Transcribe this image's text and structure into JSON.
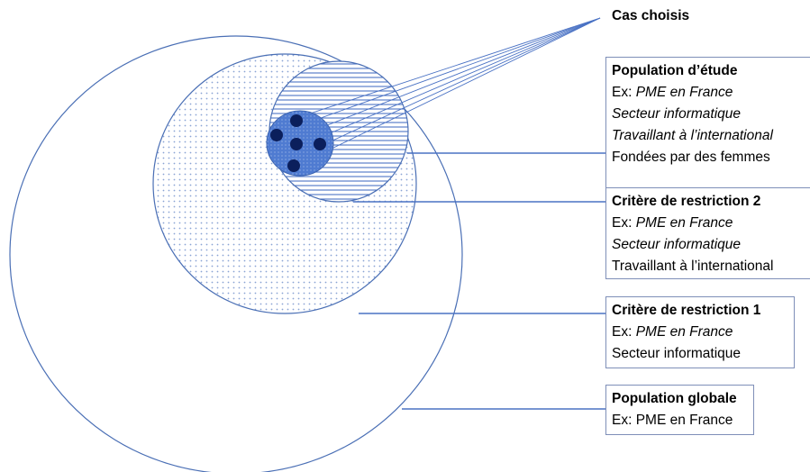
{
  "cas_choisis": "Cas choisis",
  "population_etude": {
    "title": "Population d’étude",
    "ex_prefix": "Ex: ",
    "ex_value": "PME en France",
    "line2": "Secteur informatique",
    "line3": "Travaillant à l’international",
    "line4": "Fondées par des femmes"
  },
  "critere_2": {
    "title": "Critère de restriction 2",
    "ex_prefix": "Ex: ",
    "ex_value": "PME en France",
    "line2": "Secteur informatique",
    "line3": "Travaillant à l’international"
  },
  "critere_1": {
    "title": "Critère de restriction 1",
    "ex_prefix": "Ex: ",
    "ex_value": "PME en France",
    "line2": "Secteur informatique"
  },
  "population_globale": {
    "title": "Population globale",
    "ex_line": "Ex: PME en France"
  },
  "colors": {
    "outline": "#4a6fb5",
    "dots": "#8aa4d4",
    "hatch": "#4a72c4",
    "core": "#4f7bd1",
    "points": "#0b1f5c",
    "connector": "#4a72c4"
  }
}
